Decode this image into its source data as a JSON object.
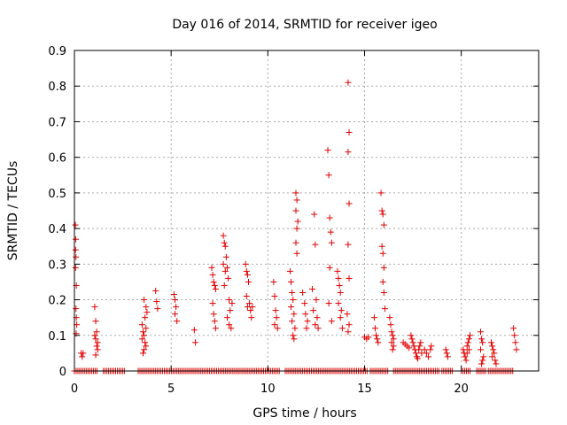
{
  "chart_data": {
    "type": "scatter",
    "title": "Day 016 of 2014, SRMTID for receiver igeo",
    "xlabel": "GPS time / hours",
    "ylabel": "SRMTID / TECUs",
    "xlim": [
      0,
      24
    ],
    "ylim": [
      0,
      0.9
    ],
    "xticks": [
      0,
      5,
      10,
      15,
      20
    ],
    "xtick_labels": [
      "0",
      "5",
      "10",
      "15",
      "20"
    ],
    "yticks": [
      0,
      0.1,
      0.2,
      0.3,
      0.4,
      0.5,
      0.6,
      0.7,
      0.8,
      0.9
    ],
    "ytick_labels": [
      "0",
      "0.1",
      "0.2",
      "0.3",
      "0.4",
      "0.5",
      "0.6",
      "0.7",
      "0.8",
      "0.9"
    ],
    "grid": true,
    "marker": "+",
    "color": "#e00000",
    "series": [
      {
        "name": "SRMTID",
        "points": [
          [
            0.05,
            0.41
          ],
          [
            0.07,
            0.37
          ],
          [
            0.06,
            0.34
          ],
          [
            0.08,
            0.32
          ],
          [
            0.06,
            0.29
          ],
          [
            0.1,
            0.24
          ],
          [
            0.08,
            0.175
          ],
          [
            0.1,
            0.15
          ],
          [
            0.12,
            0.13
          ],
          [
            0.09,
            0.105
          ],
          [
            0.35,
            0.05
          ],
          [
            0.4,
            0.04
          ],
          [
            0.45,
            0.05
          ],
          [
            1.05,
            0.18
          ],
          [
            1.1,
            0.14
          ],
          [
            1.05,
            0.1
          ],
          [
            1.1,
            0.09
          ],
          [
            1.15,
            0.11
          ],
          [
            1.2,
            0.08
          ],
          [
            1.15,
            0.07
          ],
          [
            1.2,
            0.06
          ],
          [
            1.1,
            0.045
          ],
          [
            3.5,
            0.13
          ],
          [
            3.55,
            0.11
          ],
          [
            3.6,
            0.1
          ],
          [
            3.5,
            0.09
          ],
          [
            3.65,
            0.08
          ],
          [
            3.7,
            0.07
          ],
          [
            3.6,
            0.06
          ],
          [
            3.55,
            0.05
          ],
          [
            3.7,
            0.12
          ],
          [
            3.6,
            0.2
          ],
          [
            3.7,
            0.18
          ],
          [
            3.75,
            0.165
          ],
          [
            3.65,
            0.15
          ],
          [
            4.2,
            0.225
          ],
          [
            4.25,
            0.195
          ],
          [
            4.3,
            0.175
          ],
          [
            5.15,
            0.215
          ],
          [
            5.2,
            0.2
          ],
          [
            5.25,
            0.18
          ],
          [
            5.2,
            0.16
          ],
          [
            5.3,
            0.14
          ],
          [
            6.2,
            0.115
          ],
          [
            6.25,
            0.08
          ],
          [
            7.1,
            0.29
          ],
          [
            7.15,
            0.27
          ],
          [
            7.2,
            0.25
          ],
          [
            7.25,
            0.24
          ],
          [
            7.3,
            0.23
          ],
          [
            7.15,
            0.19
          ],
          [
            7.2,
            0.16
          ],
          [
            7.25,
            0.14
          ],
          [
            7.3,
            0.12
          ],
          [
            7.7,
            0.38
          ],
          [
            7.75,
            0.36
          ],
          [
            7.8,
            0.35
          ],
          [
            7.85,
            0.32
          ],
          [
            7.7,
            0.3
          ],
          [
            7.9,
            0.29
          ],
          [
            7.8,
            0.28
          ],
          [
            7.95,
            0.26
          ],
          [
            7.75,
            0.24
          ],
          [
            8.0,
            0.2
          ],
          [
            8.05,
            0.17
          ],
          [
            7.9,
            0.15
          ],
          [
            8.0,
            0.13
          ],
          [
            8.1,
            0.12
          ],
          [
            8.15,
            0.19
          ],
          [
            8.85,
            0.3
          ],
          [
            8.9,
            0.28
          ],
          [
            8.95,
            0.27
          ],
          [
            9.0,
            0.25
          ],
          [
            8.9,
            0.21
          ],
          [
            9.05,
            0.19
          ],
          [
            8.95,
            0.18
          ],
          [
            9.1,
            0.17
          ],
          [
            9.15,
            0.15
          ],
          [
            9.2,
            0.18
          ],
          [
            10.3,
            0.25
          ],
          [
            10.35,
            0.21
          ],
          [
            10.4,
            0.17
          ],
          [
            10.45,
            0.15
          ],
          [
            10.35,
            0.13
          ],
          [
            10.5,
            0.12
          ],
          [
            11.15,
            0.28
          ],
          [
            11.2,
            0.25
          ],
          [
            11.25,
            0.22
          ],
          [
            11.3,
            0.2
          ],
          [
            11.2,
            0.18
          ],
          [
            11.35,
            0.16
          ],
          [
            11.25,
            0.14
          ],
          [
            11.4,
            0.12
          ],
          [
            11.3,
            0.1
          ],
          [
            11.35,
            0.09
          ],
          [
            11.45,
            0.5
          ],
          [
            11.5,
            0.48
          ],
          [
            11.45,
            0.45
          ],
          [
            11.55,
            0.42
          ],
          [
            11.5,
            0.4
          ],
          [
            11.45,
            0.36
          ],
          [
            11.5,
            0.33
          ],
          [
            11.8,
            0.22
          ],
          [
            11.9,
            0.19
          ],
          [
            11.95,
            0.16
          ],
          [
            12.05,
            0.14
          ],
          [
            12.0,
            0.12
          ],
          [
            12.4,
            0.44
          ],
          [
            12.45,
            0.355
          ],
          [
            12.3,
            0.23
          ],
          [
            12.5,
            0.2
          ],
          [
            12.35,
            0.17
          ],
          [
            12.55,
            0.15
          ],
          [
            12.45,
            0.13
          ],
          [
            12.6,
            0.12
          ],
          [
            13.1,
            0.62
          ],
          [
            13.15,
            0.55
          ],
          [
            13.2,
            0.43
          ],
          [
            13.25,
            0.39
          ],
          [
            13.3,
            0.36
          ],
          [
            13.2,
            0.29
          ],
          [
            13.15,
            0.19
          ],
          [
            13.3,
            0.14
          ],
          [
            13.6,
            0.28
          ],
          [
            13.65,
            0.26
          ],
          [
            13.7,
            0.24
          ],
          [
            13.75,
            0.22
          ],
          [
            13.65,
            0.19
          ],
          [
            13.8,
            0.17
          ],
          [
            13.75,
            0.15
          ],
          [
            13.85,
            0.12
          ],
          [
            14.15,
            0.81
          ],
          [
            14.2,
            0.67
          ],
          [
            14.15,
            0.615
          ],
          [
            14.2,
            0.47
          ],
          [
            14.15,
            0.355
          ],
          [
            14.2,
            0.26
          ],
          [
            14.1,
            0.16
          ],
          [
            14.2,
            0.13
          ],
          [
            14.15,
            0.11
          ],
          [
            15.0,
            0.095
          ],
          [
            15.1,
            0.09
          ],
          [
            15.2,
            0.095
          ],
          [
            15.5,
            0.15
          ],
          [
            15.55,
            0.12
          ],
          [
            15.6,
            0.1
          ],
          [
            15.65,
            0.09
          ],
          [
            15.7,
            0.08
          ],
          [
            15.85,
            0.5
          ],
          [
            15.9,
            0.45
          ],
          [
            15.95,
            0.44
          ],
          [
            16.0,
            0.41
          ],
          [
            15.9,
            0.35
          ],
          [
            15.95,
            0.33
          ],
          [
            16.0,
            0.29
          ],
          [
            15.95,
            0.25
          ],
          [
            16.0,
            0.22
          ],
          [
            16.05,
            0.175
          ],
          [
            16.3,
            0.15
          ],
          [
            16.35,
            0.13
          ],
          [
            16.4,
            0.11
          ],
          [
            16.45,
            0.1
          ],
          [
            16.5,
            0.09
          ],
          [
            16.4,
            0.08
          ],
          [
            16.5,
            0.07
          ],
          [
            16.45,
            0.06
          ],
          [
            17.0,
            0.08
          ],
          [
            17.1,
            0.075
          ],
          [
            17.2,
            0.07
          ],
          [
            17.3,
            0.065
          ],
          [
            17.4,
            0.1
          ],
          [
            17.45,
            0.09
          ],
          [
            17.5,
            0.08
          ],
          [
            17.55,
            0.07
          ],
          [
            17.6,
            0.06
          ],
          [
            17.65,
            0.05
          ],
          [
            17.7,
            0.04
          ],
          [
            17.75,
            0.035
          ],
          [
            17.8,
            0.06
          ],
          [
            17.85,
            0.07
          ],
          [
            17.9,
            0.08
          ],
          [
            17.95,
            0.05
          ],
          [
            18.1,
            0.06
          ],
          [
            18.2,
            0.05
          ],
          [
            18.3,
            0.04
          ],
          [
            18.4,
            0.06
          ],
          [
            18.45,
            0.07
          ],
          [
            19.2,
            0.06
          ],
          [
            19.25,
            0.05
          ],
          [
            19.3,
            0.04
          ],
          [
            20.1,
            0.06
          ],
          [
            20.15,
            0.05
          ],
          [
            20.2,
            0.04
          ],
          [
            20.25,
            0.03
          ],
          [
            20.3,
            0.07
          ],
          [
            20.35,
            0.08
          ],
          [
            20.4,
            0.09
          ],
          [
            20.45,
            0.1
          ],
          [
            20.3,
            0.05
          ],
          [
            20.4,
            0.06
          ],
          [
            21.0,
            0.11
          ],
          [
            21.05,
            0.09
          ],
          [
            21.1,
            0.08
          ],
          [
            21.0,
            0.06
          ],
          [
            21.15,
            0.04
          ],
          [
            21.1,
            0.03
          ],
          [
            21.05,
            0.02
          ],
          [
            21.55,
            0.08
          ],
          [
            21.6,
            0.07
          ],
          [
            21.65,
            0.06
          ],
          [
            21.7,
            0.05
          ],
          [
            21.6,
            0.04
          ],
          [
            21.75,
            0.03
          ],
          [
            21.8,
            0.02
          ],
          [
            22.7,
            0.12
          ],
          [
            22.75,
            0.1
          ],
          [
            22.8,
            0.08
          ],
          [
            22.85,
            0.06
          ]
        ]
      }
    ],
    "zero_baseline_ranges": [
      [
        0.0,
        1.2
      ],
      [
        1.5,
        2.6
      ],
      [
        3.3,
        10.6
      ],
      [
        10.9,
        15.2
      ],
      [
        15.3,
        16.2
      ],
      [
        16.5,
        18.9
      ],
      [
        19.0,
        19.6
      ],
      [
        20.0,
        20.5
      ],
      [
        20.8,
        21.3
      ],
      [
        21.4,
        22.7
      ]
    ]
  }
}
